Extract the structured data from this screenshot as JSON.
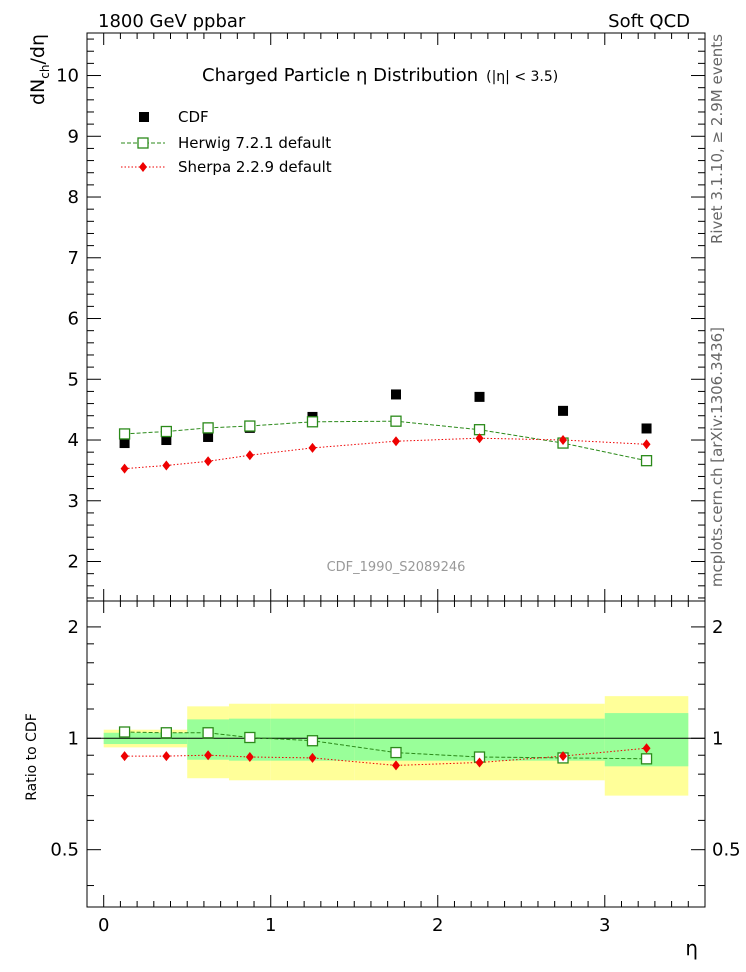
{
  "header": {
    "left": "1800 GeV ppbar",
    "right": "Soft QCD"
  },
  "side_labels": {
    "rivet": "Rivet 3.1.10, ≥ 2.9M events",
    "mcplots": "mcplots.cern.ch [arXiv:1306.3436]"
  },
  "chart_data": {
    "type": "scatter",
    "title": "Charged Particle  η Distribution",
    "title_note": "(|η| < 3.5)",
    "ylabel_main": "dN",
    "ylabel_sub": "ch",
    "ylabel_tail": "/dη",
    "xlabel": "η",
    "ratio_ylabel": "Ratio to CDF",
    "analysis_id": "CDF_1990_S2089246",
    "xlim": [
      -0.1,
      3.6
    ],
    "ylim": [
      1.35,
      10.7
    ],
    "ratio_ylim": [
      0.35,
      2.35
    ],
    "x_ticks": [
      0,
      1,
      2,
      3
    ],
    "x_tick_labels": [
      "0",
      "1",
      "2",
      "3"
    ],
    "y_ticks": [
      2,
      3,
      4,
      5,
      6,
      7,
      8,
      9,
      10
    ],
    "y_tick_labels": [
      "2",
      "3",
      "4",
      "5",
      "6",
      "7",
      "8",
      "9",
      "10"
    ],
    "ratio_y_ticks": [
      0.5,
      1,
      2
    ],
    "ratio_y_tick_labels": [
      "0.5",
      "1",
      "2"
    ],
    "legend": [
      {
        "label": "CDF",
        "marker": "square-filled",
        "color": "#000000"
      },
      {
        "label": "Herwig 7.2.1 default",
        "marker": "square-open",
        "color": "#2b8a1a"
      },
      {
        "label": "Sherpa 2.2.9 default",
        "marker": "diamond",
        "color": "#ee0000"
      }
    ],
    "series": [
      {
        "name": "CDF",
        "x": [
          0.125,
          0.375,
          0.625,
          0.875,
          1.25,
          1.75,
          2.25,
          2.75,
          3.25
        ],
        "y": [
          3.95,
          4.0,
          4.05,
          4.2,
          4.38,
          4.75,
          4.71,
          4.48,
          4.19
        ]
      },
      {
        "name": "Herwig 7.2.1 default",
        "x": [
          0.125,
          0.375,
          0.625,
          0.875,
          1.25,
          1.75,
          2.25,
          2.75,
          3.25
        ],
        "y": [
          4.1,
          4.14,
          4.2,
          4.23,
          4.3,
          4.31,
          4.17,
          3.95,
          3.66
        ]
      },
      {
        "name": "Sherpa 2.2.9 default",
        "x": [
          0.125,
          0.375,
          0.625,
          0.875,
          1.25,
          1.75,
          2.25,
          2.75,
          3.25
        ],
        "y": [
          3.53,
          3.58,
          3.65,
          3.75,
          3.87,
          3.98,
          4.03,
          4.0,
          3.93
        ]
      }
    ],
    "ratio_series": [
      {
        "name": "Herwig 7.2.1 default",
        "y": [
          1.04,
          1.035,
          1.035,
          1.005,
          0.985,
          0.915,
          0.89,
          0.885,
          0.88
        ]
      },
      {
        "name": "Sherpa 2.2.9 default",
        "y": [
          0.895,
          0.895,
          0.9,
          0.89,
          0.885,
          0.845,
          0.86,
          0.895,
          0.94
        ]
      }
    ],
    "uncertainty_bins": [
      {
        "x0": 0.0,
        "x1": 0.5,
        "stat": [
          0.965,
          1.035
        ],
        "total": [
          0.945,
          1.055
        ]
      },
      {
        "x0": 0.5,
        "x1": 0.75,
        "stat": [
          0.875,
          1.125
        ],
        "total": [
          0.78,
          1.22
        ]
      },
      {
        "x0": 0.75,
        "x1": 1.0,
        "stat": [
          0.87,
          1.13
        ],
        "total": [
          0.77,
          1.24
        ]
      },
      {
        "x0": 1.0,
        "x1": 1.5,
        "stat": [
          0.87,
          1.13
        ],
        "total": [
          0.77,
          1.24
        ]
      },
      {
        "x0": 1.5,
        "x1": 3.0,
        "stat": [
          0.87,
          1.13
        ],
        "total": [
          0.77,
          1.24
        ]
      },
      {
        "x0": 3.0,
        "x1": 3.5,
        "stat": [
          0.84,
          1.17
        ],
        "total": [
          0.7,
          1.3
        ]
      }
    ]
  },
  "colors": {
    "stat_band": "#99ff99",
    "total_band": "#ffff99",
    "cdf": "#000000",
    "herwig": "#2b8a1a",
    "sherpa": "#ee0000"
  }
}
